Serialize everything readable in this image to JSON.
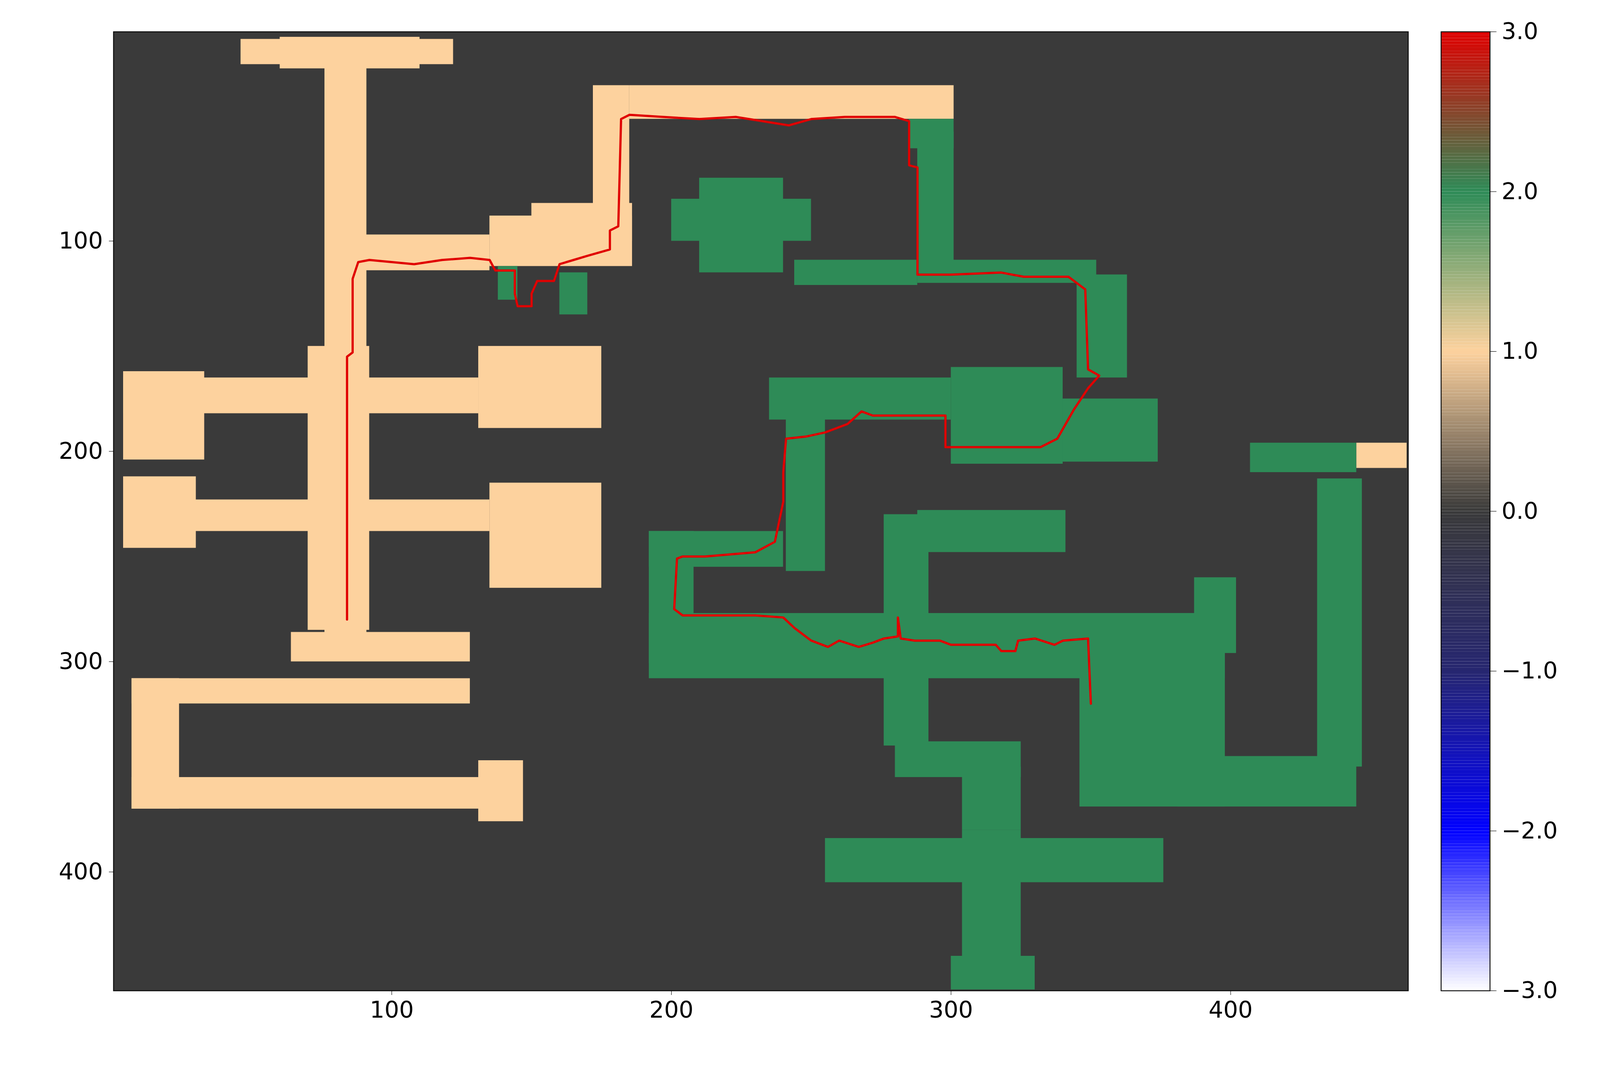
{
  "chart_data": {
    "type": "heatmap",
    "xlim": [
      0.5,
      463.5
    ],
    "ylim": [
      0.5,
      456.5
    ],
    "xticks": [
      100,
      200,
      300,
      400
    ],
    "yticks": [
      100,
      200,
      300,
      400
    ],
    "colorbar": {
      "range": [
        -3,
        3
      ],
      "ticks": [
        -3,
        -2,
        -1,
        0,
        1,
        2,
        3
      ]
    },
    "cells": [
      {
        "x1": 0.5,
        "x2": 463.5,
        "y1": 0.5,
        "y2": 456.5,
        "value": 0
      },
      {
        "x1": 46,
        "x2": 122,
        "y1": 4,
        "y2": 16,
        "value": 1
      },
      {
        "x1": 60,
        "x2": 110,
        "y1": 3,
        "y2": 18,
        "value": 1
      },
      {
        "x1": 76,
        "x2": 91,
        "y1": 10,
        "y2": 290,
        "value": 1
      },
      {
        "x1": 70,
        "x2": 92,
        "y1": 150,
        "y2": 285,
        "value": 1
      },
      {
        "x1": 77,
        "x2": 135,
        "y1": 97,
        "y2": 114,
        "value": 1
      },
      {
        "x1": 135,
        "x2": 186,
        "y1": 88,
        "y2": 112,
        "value": 1
      },
      {
        "x1": 150,
        "x2": 186,
        "y1": 82,
        "y2": 100,
        "value": 1
      },
      {
        "x1": 185,
        "x2": 301,
        "y1": 26,
        "y2": 42,
        "value": 1
      },
      {
        "x1": 172,
        "x2": 185,
        "y1": 26,
        "y2": 100,
        "value": 1
      },
      {
        "x1": 4,
        "x2": 131,
        "y1": 165,
        "y2": 182,
        "value": 1
      },
      {
        "x1": 131,
        "x2": 175,
        "y1": 150,
        "y2": 189,
        "value": 1
      },
      {
        "x1": 4,
        "x2": 33,
        "y1": 162,
        "y2": 204,
        "value": 1
      },
      {
        "x1": 4,
        "x2": 135,
        "y1": 223,
        "y2": 238,
        "value": 1
      },
      {
        "x1": 135,
        "x2": 175,
        "y1": 215,
        "y2": 265,
        "value": 1
      },
      {
        "x1": 4,
        "x2": 30,
        "y1": 212,
        "y2": 246,
        "value": 1
      },
      {
        "x1": 64,
        "x2": 128,
        "y1": 286,
        "y2": 300,
        "value": 1
      },
      {
        "x1": 7,
        "x2": 128,
        "y1": 308,
        "y2": 320,
        "value": 1
      },
      {
        "x1": 7,
        "x2": 24,
        "y1": 308,
        "y2": 370,
        "value": 1
      },
      {
        "x1": 7,
        "x2": 146,
        "y1": 355,
        "y2": 370,
        "value": 1
      },
      {
        "x1": 131,
        "x2": 147,
        "y1": 347,
        "y2": 376,
        "value": 1
      },
      {
        "x1": 445,
        "x2": 463,
        "y1": 196,
        "y2": 208,
        "value": 1
      },
      {
        "x1": 285,
        "x2": 301,
        "y1": 42,
        "y2": 56,
        "value": 2
      },
      {
        "x1": 288,
        "x2": 301,
        "y1": 48,
        "y2": 116,
        "value": 2
      },
      {
        "x1": 288,
        "x2": 352,
        "y1": 109,
        "y2": 120,
        "value": 2
      },
      {
        "x1": 345,
        "x2": 363,
        "y1": 116,
        "y2": 165,
        "value": 2
      },
      {
        "x1": 200,
        "x2": 250,
        "y1": 80,
        "y2": 100,
        "value": 2
      },
      {
        "x1": 210,
        "x2": 240,
        "y1": 70,
        "y2": 115,
        "value": 2
      },
      {
        "x1": 244,
        "x2": 288,
        "y1": 109,
        "y2": 121,
        "value": 2
      },
      {
        "x1": 138,
        "x2": 145,
        "y1": 112,
        "y2": 128,
        "value": 2
      },
      {
        "x1": 160,
        "x2": 170,
        "y1": 115,
        "y2": 135,
        "value": 2
      },
      {
        "x1": 235,
        "x2": 300,
        "y1": 165,
        "y2": 185,
        "value": 2
      },
      {
        "x1": 300,
        "x2": 340,
        "y1": 160,
        "y2": 206,
        "value": 2
      },
      {
        "x1": 340,
        "x2": 374,
        "y1": 175,
        "y2": 205,
        "value": 2
      },
      {
        "x1": 241,
        "x2": 255,
        "y1": 180,
        "y2": 257,
        "value": 2
      },
      {
        "x1": 192,
        "x2": 208,
        "y1": 238,
        "y2": 301,
        "value": 2
      },
      {
        "x1": 192,
        "x2": 240,
        "y1": 238,
        "y2": 255,
        "value": 2
      },
      {
        "x1": 192,
        "x2": 398,
        "y1": 277,
        "y2": 308,
        "value": 2
      },
      {
        "x1": 276,
        "x2": 292,
        "y1": 230,
        "y2": 290,
        "value": 2
      },
      {
        "x1": 288,
        "x2": 341,
        "y1": 228,
        "y2": 248,
        "value": 2
      },
      {
        "x1": 276,
        "x2": 292,
        "y1": 300,
        "y2": 340,
        "value": 2
      },
      {
        "x1": 280,
        "x2": 325,
        "y1": 338,
        "y2": 355,
        "value": 2
      },
      {
        "x1": 304,
        "x2": 325,
        "y1": 350,
        "y2": 380,
        "value": 2
      },
      {
        "x1": 255,
        "x2": 376,
        "y1": 384,
        "y2": 405,
        "value": 2
      },
      {
        "x1": 304,
        "x2": 325,
        "y1": 380,
        "y2": 454,
        "value": 2
      },
      {
        "x1": 300,
        "x2": 330,
        "y1": 440,
        "y2": 456,
        "value": 2
      },
      {
        "x1": 346,
        "x2": 398,
        "y1": 277,
        "y2": 369,
        "value": 2
      },
      {
        "x1": 381,
        "x2": 445,
        "y1": 345,
        "y2": 369,
        "value": 2
      },
      {
        "x1": 431,
        "x2": 447,
        "y1": 213,
        "y2": 350,
        "value": 2
      },
      {
        "x1": 407,
        "x2": 445,
        "y1": 196,
        "y2": 210,
        "value": 2
      },
      {
        "x1": 387,
        "x2": 402,
        "y1": 260,
        "y2": 296,
        "value": 2
      }
    ],
    "path": {
      "color": "#e00000",
      "x": [
        84,
        84,
        86,
        86,
        88,
        92,
        100,
        108,
        118,
        128,
        135,
        137,
        144,
        144,
        145,
        150,
        150,
        152,
        158,
        160,
        165,
        170,
        178,
        178,
        181,
        182,
        185,
        197,
        210,
        223,
        242,
        250,
        262,
        280,
        285,
        285,
        288,
        288,
        300,
        318,
        326,
        342,
        348,
        349,
        353,
        349,
        344,
        338,
        332,
        298,
        298,
        272,
        268,
        263,
        255,
        248,
        241,
        240,
        240,
        237,
        230,
        212,
        204,
        202,
        201,
        204,
        230,
        240,
        244,
        250,
        256,
        260,
        267,
        272,
        276,
        281,
        281,
        282,
        287,
        296,
        300,
        316,
        318,
        323,
        324,
        330,
        337,
        340,
        349,
        350
      ],
      "y": [
        280,
        155,
        153,
        118,
        110,
        109,
        110,
        111,
        109,
        108,
        109,
        114,
        114,
        125,
        131,
        131,
        125,
        119,
        119,
        111,
        109,
        107,
        104,
        95,
        93,
        42,
        40,
        41,
        42,
        41,
        45,
        42,
        41,
        41,
        43,
        64,
        65,
        116,
        116,
        115,
        117,
        117,
        123,
        161,
        164,
        170,
        180,
        194,
        198,
        198,
        183,
        183,
        181,
        187,
        191,
        193,
        194,
        210,
        224,
        243,
        248,
        250,
        250,
        251,
        275,
        278,
        278,
        279,
        284,
        290,
        293,
        290,
        293,
        291,
        289,
        288,
        279,
        289,
        290,
        290,
        292,
        292,
        295,
        295,
        290,
        289,
        292,
        290,
        289,
        320
      ]
    }
  }
}
